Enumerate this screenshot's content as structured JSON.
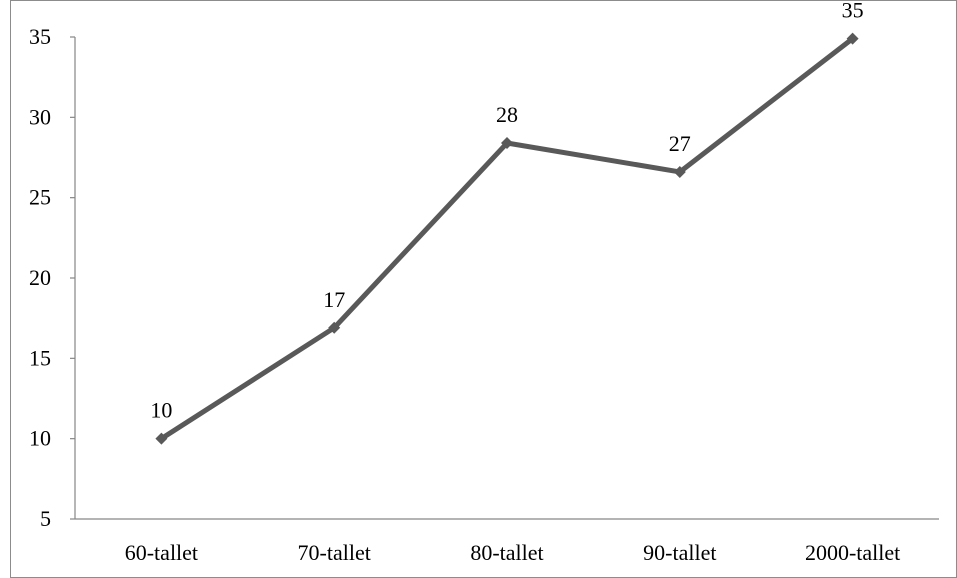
{
  "chart_data": {
    "type": "line",
    "title": "",
    "xlabel": "",
    "ylabel": "",
    "categories": [
      "60-tallet",
      "70-tallet",
      "80-tallet",
      "90-tallet",
      "2000-tallet"
    ],
    "series": [
      {
        "values": [
          10,
          16.9,
          28.4,
          26.6,
          34.9
        ],
        "data_labels": [
          "10",
          "17",
          "28",
          "27",
          "35"
        ],
        "color": "#595959",
        "marker": "diamond"
      }
    ],
    "y_ticks": [
      "5",
      "10",
      "15",
      "20",
      "25",
      "30",
      "35"
    ],
    "ylim": [
      5,
      35
    ],
    "grid": false,
    "legend": "none"
  }
}
